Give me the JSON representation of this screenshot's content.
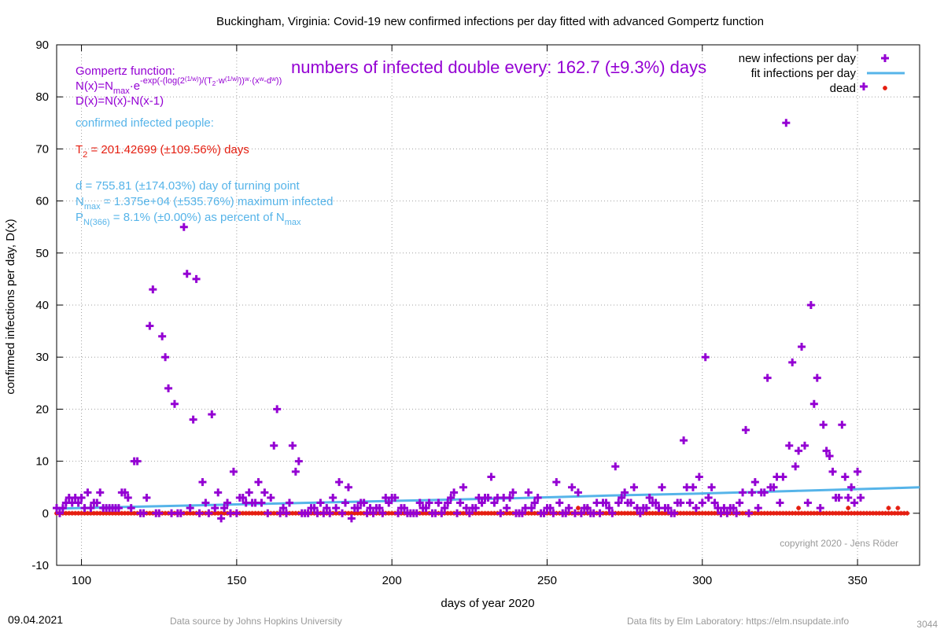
{
  "colors": {
    "infections": "#9400d3",
    "fit": "#56b4e9",
    "dead": "#e51e10",
    "grid": "#a0a0a0",
    "purple_text": "#9400d3",
    "blue_text": "#56b4e9",
    "red_text": "#e51e10"
  },
  "footer": {
    "date": "09.04.2021",
    "source": "Data source by Johns Hopkins University",
    "fits": "Data fits by Elm Laboratory: https://elm.nsupdate.info",
    "id": "3044"
  },
  "annotations": {
    "gompertz_title": "Gompertz function:",
    "formula_n": "N(x)=N",
    "formula_n_sub": "max",
    "formula_n_rest": "·e",
    "formula_exp": "-exp(-(log(2",
    "formula_exp2": "(1/w)",
    "formula_exp3": ")/(T",
    "formula_exp4": "2",
    "formula_exp5": "·w",
    "formula_exp6": "(1/w)",
    "formula_exp7": "))",
    "formula_exp8": "w",
    "formula_exp9": "·(x",
    "formula_exp10": "w",
    "formula_exp11": "-d",
    "formula_exp12": "w",
    "formula_exp13": "))",
    "formula_d": "D(x)=N(x)-N(x-1)",
    "double_every": "numbers of infected double every: 162.7 (±9.3%) days",
    "confirmed": "confirmed infected people:",
    "t2_prefix": "T",
    "t2_sub": "2",
    "t2_rest": " = 201.42699 (±109.56%) days",
    "d_line": "d = 755.81 (±174.03%) day of turning point",
    "nmax_prefix": "N",
    "nmax_sub": "max",
    "nmax_rest": " = 1.375e+04 (±535.76%) maximum infected",
    "p_prefix": "P",
    "p_sub": "N(366)",
    "p_rest": " = 8.1% (±0.00%) as percent of N",
    "p_sub2": "max",
    "copyright": "copyright 2020 - Jens Röder"
  },
  "chart_data": {
    "type": "scatter",
    "title": "Buckingham,  Virginia: Covid-19 new confirmed infections per day fitted with advanced Gompertz function",
    "xlabel": "days of year 2020",
    "ylabel": "confirmed infections per day, D(x)",
    "xlim": [
      92,
      370
    ],
    "ylim": [
      -10,
      90
    ],
    "xticks": [
      100,
      150,
      200,
      250,
      300,
      350
    ],
    "yticks": [
      -10,
      0,
      10,
      20,
      30,
      40,
      50,
      60,
      70,
      80,
      90
    ],
    "grid": true,
    "legend_position": "top-right",
    "legend": [
      "new infections per day",
      "fit infections per day",
      "dead"
    ],
    "series": [
      {
        "name": "new infections per day",
        "marker": "plus",
        "points": [
          [
            92,
            1
          ],
          [
            93,
            0
          ],
          [
            94,
            1
          ],
          [
            95,
            2
          ],
          [
            96,
            3
          ],
          [
            97,
            2
          ],
          [
            98,
            3
          ],
          [
            99,
            2
          ],
          [
            100,
            3
          ],
          [
            101,
            1
          ],
          [
            102,
            4
          ],
          [
            103,
            1
          ],
          [
            104,
            2
          ],
          [
            105,
            2
          ],
          [
            106,
            4
          ],
          [
            107,
            1
          ],
          [
            108,
            1
          ],
          [
            109,
            1
          ],
          [
            110,
            1
          ],
          [
            111,
            1
          ],
          [
            112,
            1
          ],
          [
            113,
            4
          ],
          [
            114,
            4
          ],
          [
            115,
            3
          ],
          [
            116,
            1
          ],
          [
            117,
            10
          ],
          [
            118,
            10
          ],
          [
            119,
            0
          ],
          [
            120,
            0
          ],
          [
            121,
            3
          ],
          [
            122,
            36
          ],
          [
            123,
            43
          ],
          [
            124,
            0
          ],
          [
            125,
            0
          ],
          [
            126,
            34
          ],
          [
            127,
            30
          ],
          [
            128,
            24
          ],
          [
            129,
            0
          ],
          [
            130,
            21
          ],
          [
            131,
            0
          ],
          [
            132,
            0
          ],
          [
            133,
            55
          ],
          [
            134,
            46
          ],
          [
            135,
            1
          ],
          [
            136,
            18
          ],
          [
            137,
            45
          ],
          [
            138,
            0
          ],
          [
            139,
            6
          ],
          [
            140,
            2
          ],
          [
            141,
            0
          ],
          [
            142,
            19
          ],
          [
            143,
            1
          ],
          [
            144,
            4
          ],
          [
            145,
            -1
          ],
          [
            146,
            1
          ],
          [
            147,
            2
          ],
          [
            148,
            0
          ],
          [
            149,
            8
          ],
          [
            150,
            0
          ],
          [
            151,
            3
          ],
          [
            152,
            3
          ],
          [
            153,
            2
          ],
          [
            154,
            4
          ],
          [
            155,
            2
          ],
          [
            156,
            2
          ],
          [
            157,
            6
          ],
          [
            158,
            2
          ],
          [
            159,
            4
          ],
          [
            160,
            0
          ],
          [
            161,
            3
          ],
          [
            162,
            13
          ],
          [
            163,
            20
          ],
          [
            164,
            0
          ],
          [
            165,
            1
          ],
          [
            166,
            0
          ],
          [
            167,
            2
          ],
          [
            168,
            13
          ],
          [
            169,
            8
          ],
          [
            170,
            10
          ],
          [
            171,
            0
          ],
          [
            172,
            0
          ],
          [
            173,
            0
          ],
          [
            174,
            1
          ],
          [
            175,
            1
          ],
          [
            176,
            0
          ],
          [
            177,
            2
          ],
          [
            178,
            0
          ],
          [
            179,
            1
          ],
          [
            180,
            0
          ],
          [
            181,
            3
          ],
          [
            182,
            1
          ],
          [
            183,
            6
          ],
          [
            184,
            0
          ],
          [
            185,
            2
          ],
          [
            186,
            5
          ],
          [
            187,
            -1
          ],
          [
            188,
            1
          ],
          [
            189,
            1
          ],
          [
            190,
            2
          ],
          [
            191,
            2
          ],
          [
            192,
            0
          ],
          [
            193,
            1
          ],
          [
            194,
            0
          ],
          [
            195,
            1
          ],
          [
            196,
            1
          ],
          [
            197,
            0
          ],
          [
            198,
            3
          ],
          [
            199,
            2
          ],
          [
            200,
            3
          ],
          [
            201,
            3
          ],
          [
            202,
            0
          ],
          [
            203,
            1
          ],
          [
            204,
            1
          ],
          [
            205,
            0
          ],
          [
            206,
            0
          ],
          [
            207,
            0
          ],
          [
            208,
            0
          ],
          [
            209,
            2
          ],
          [
            210,
            1
          ],
          [
            211,
            1
          ],
          [
            212,
            2
          ],
          [
            213,
            0
          ],
          [
            214,
            0
          ],
          [
            215,
            2
          ],
          [
            216,
            0
          ],
          [
            217,
            1
          ],
          [
            218,
            2
          ],
          [
            219,
            3
          ],
          [
            220,
            4
          ],
          [
            221,
            0
          ],
          [
            222,
            2
          ],
          [
            223,
            5
          ],
          [
            224,
            1
          ],
          [
            225,
            0
          ],
          [
            226,
            1
          ],
          [
            227,
            1
          ],
          [
            228,
            3
          ],
          [
            229,
            2
          ],
          [
            230,
            3
          ],
          [
            231,
            3
          ],
          [
            232,
            7
          ],
          [
            233,
            2
          ],
          [
            234,
            3
          ],
          [
            235,
            0
          ],
          [
            236,
            3
          ],
          [
            237,
            1
          ],
          [
            238,
            3
          ],
          [
            239,
            4
          ],
          [
            240,
            0
          ],
          [
            241,
            0
          ],
          [
            242,
            0
          ],
          [
            243,
            1
          ],
          [
            244,
            4
          ],
          [
            245,
            1
          ],
          [
            246,
            2
          ],
          [
            247,
            3
          ],
          [
            248,
            0
          ],
          [
            249,
            0
          ],
          [
            250,
            1
          ],
          [
            251,
            1
          ],
          [
            252,
            0
          ],
          [
            253,
            6
          ],
          [
            254,
            2
          ],
          [
            255,
            0
          ],
          [
            256,
            0
          ],
          [
            257,
            1
          ],
          [
            258,
            5
          ],
          [
            259,
            0
          ],
          [
            260,
            4
          ],
          [
            261,
            0
          ],
          [
            262,
            1
          ],
          [
            263,
            1
          ],
          [
            264,
            0
          ],
          [
            265,
            0
          ],
          [
            266,
            2
          ],
          [
            267,
            0
          ],
          [
            268,
            2
          ],
          [
            269,
            2
          ],
          [
            270,
            1
          ],
          [
            271,
            0
          ],
          [
            272,
            9
          ],
          [
            273,
            2
          ],
          [
            274,
            3
          ],
          [
            275,
            4
          ],
          [
            276,
            2
          ],
          [
            277,
            2
          ],
          [
            278,
            5
          ],
          [
            279,
            1
          ],
          [
            280,
            0
          ],
          [
            281,
            1
          ],
          [
            282,
            1
          ],
          [
            283,
            3
          ],
          [
            284,
            2
          ],
          [
            285,
            2
          ],
          [
            286,
            1
          ],
          [
            287,
            5
          ],
          [
            288,
            1
          ],
          [
            289,
            1
          ],
          [
            290,
            0
          ],
          [
            291,
            0
          ],
          [
            292,
            2
          ],
          [
            293,
            2
          ],
          [
            294,
            14
          ],
          [
            295,
            5
          ],
          [
            296,
            2
          ],
          [
            297,
            5
          ],
          [
            298,
            1
          ],
          [
            299,
            7
          ],
          [
            300,
            2
          ],
          [
            301,
            30
          ],
          [
            302,
            3
          ],
          [
            303,
            5
          ],
          [
            304,
            2
          ],
          [
            305,
            1
          ],
          [
            306,
            0
          ],
          [
            307,
            1
          ],
          [
            308,
            0
          ],
          [
            309,
            1
          ],
          [
            310,
            1
          ],
          [
            311,
            0
          ],
          [
            312,
            2
          ],
          [
            313,
            4
          ],
          [
            314,
            16
          ],
          [
            315,
            0
          ],
          [
            316,
            4
          ],
          [
            317,
            6
          ],
          [
            318,
            1
          ],
          [
            319,
            4
          ],
          [
            320,
            4
          ],
          [
            321,
            26
          ],
          [
            322,
            5
          ],
          [
            323,
            5
          ],
          [
            324,
            7
          ],
          [
            325,
            2
          ],
          [
            326,
            7
          ],
          [
            327,
            75
          ],
          [
            328,
            13
          ],
          [
            329,
            29
          ],
          [
            330,
            9
          ],
          [
            331,
            12
          ],
          [
            332,
            32
          ],
          [
            333,
            13
          ],
          [
            334,
            2
          ],
          [
            335,
            40
          ],
          [
            336,
            21
          ],
          [
            337,
            26
          ],
          [
            338,
            1
          ],
          [
            339,
            17
          ],
          [
            340,
            12
          ],
          [
            341,
            11
          ],
          [
            342,
            8
          ],
          [
            343,
            3
          ],
          [
            344,
            3
          ],
          [
            345,
            17
          ],
          [
            346,
            7
          ],
          [
            347,
            3
          ],
          [
            348,
            5
          ],
          [
            349,
            2
          ],
          [
            350,
            8
          ],
          [
            351,
            3
          ],
          [
            352,
            82
          ]
        ]
      },
      {
        "name": "fit infections per day",
        "marker": "line",
        "x": [
          92,
          120,
          150,
          180,
          210,
          240,
          270,
          300,
          330,
          360,
          370
        ],
        "y": [
          0.9,
          1.3,
          1.7,
          2.1,
          2.5,
          2.9,
          3.4,
          3.8,
          4.3,
          4.8,
          5.0
        ]
      },
      {
        "name": "dead",
        "marker": "star",
        "x_start": 92,
        "x_end": 366,
        "extra_points": [
          [
            260,
            1
          ],
          [
            263,
            1
          ],
          [
            331,
            1
          ],
          [
            347,
            1
          ],
          [
            360,
            1
          ],
          [
            363,
            1
          ]
        ]
      }
    ]
  }
}
